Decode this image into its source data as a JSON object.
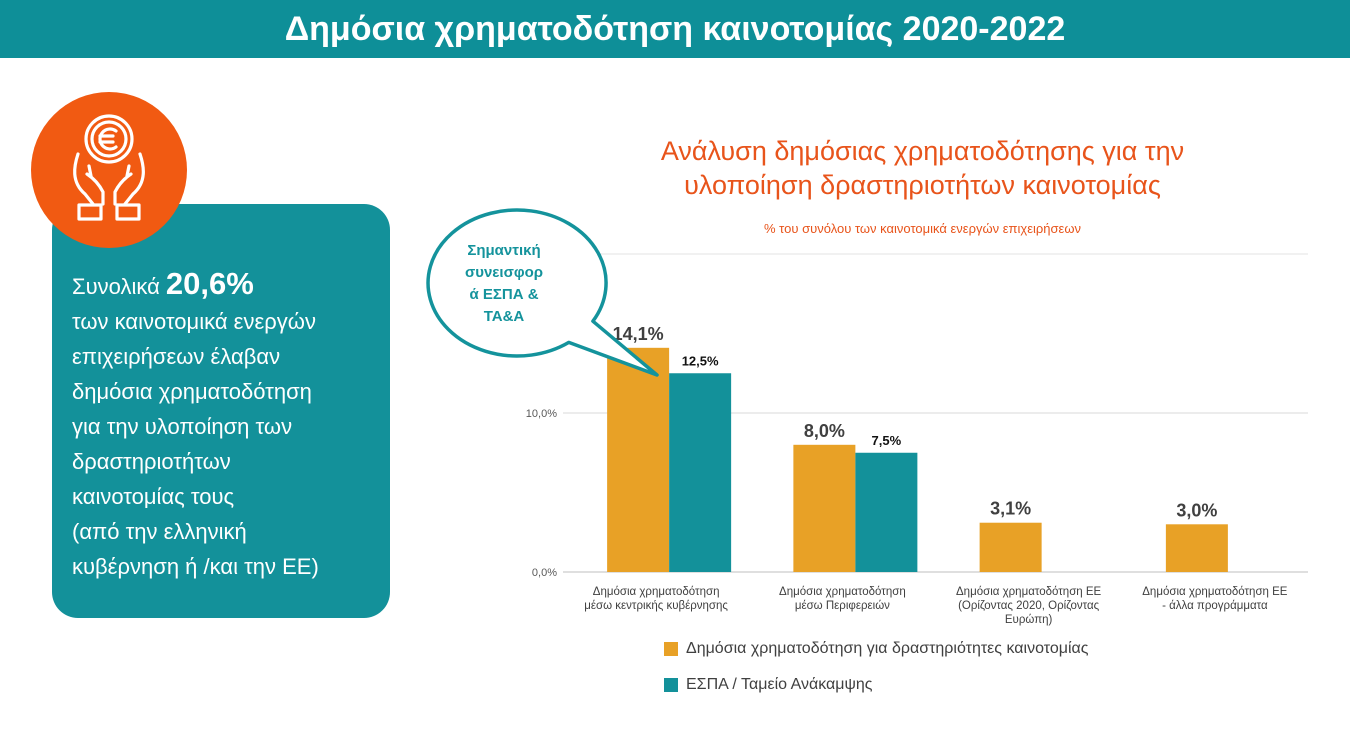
{
  "header": {
    "title": "Δημόσια χρηματοδότηση καινοτομίας 2020-2022"
  },
  "info": {
    "intro": "Συνολικά ",
    "value": "20,6%",
    "lines": [
      "των καινοτομικά ενεργών",
      "επιχειρήσεων έλαβαν",
      "δημόσια χρηματοδότηση",
      "για την υλοποίηση των",
      "δραστηριοτήτων",
      "καινοτομίας τους",
      "(από την ελληνική",
      "κυβέρνηση ή /και την ΕΕ)"
    ],
    "icon": "hands-euro-icon"
  },
  "callout": {
    "lines": [
      "Σημαντική",
      "συνεισφορ",
      "ά ΕΣΠΑ &",
      "ΤΑ&Α"
    ]
  },
  "colors": {
    "accent_teal": "#0e8f98",
    "orange": "#e8a126",
    "teal_bar": "#13919a",
    "title_orange": "#e8541b",
    "icon_orange": "#f15a12"
  },
  "chart_data": {
    "type": "bar",
    "title_lines": [
      "Ανάλυση δημόσιας χρηματοδότησης για την",
      "υλοποίηση δραστηριοτήτων καινοτομίας"
    ],
    "subtitle": "% του συνόλου των καινοτομικά ενεργών επιχειρήσεων",
    "categories": [
      [
        "Δημόσια χρηματοδότηση",
        "μέσω κεντρικής κυβέρνησης"
      ],
      [
        "Δημόσια χρηματοδότηση",
        "μέσω Περιφερειών"
      ],
      [
        "Δημόσια χρηματοδότηση ΕΕ",
        "(Ορίζοντας 2020, Ορίζοντας",
        "Ευρώπη)"
      ],
      [
        "Δημόσια χρηματοδότηση ΕΕ",
        "- άλλα προγράμματα"
      ]
    ],
    "series": [
      {
        "name": "Δημόσια χρηματοδότηση για δραστηριότητες καινοτομίας",
        "color": "#e8a126",
        "values": [
          14.1,
          8.0,
          3.1,
          3.0
        ],
        "labels": [
          "14,1%",
          "8,0%",
          "3,1%",
          "3,0%"
        ]
      },
      {
        "name": "ΕΣΠΑ / Ταμείο Ανάκαμψης",
        "color": "#13919a",
        "values": [
          12.5,
          7.5,
          null,
          null
        ],
        "labels": [
          "12,5%",
          "7,5%",
          "",
          ""
        ]
      }
    ],
    "yticks": [
      0,
      10
    ],
    "ytick_labels": [
      "0,0%",
      "10,0%"
    ],
    "ylim": [
      0,
      20
    ],
    "grid": true,
    "legend_position": "bottom"
  }
}
